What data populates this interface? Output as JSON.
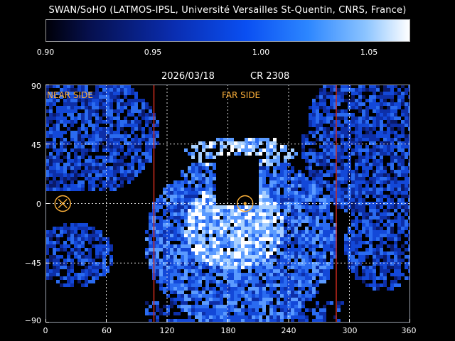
{
  "title": "SWAN/SoHO (LATMOS-IPSL, Université Versailles St-Quentin, CNRS, France)",
  "colorbar": {
    "ticks": [
      "0.90",
      "0.95",
      "1.00",
      "1.05"
    ],
    "range": [
      0.9,
      1.065
    ],
    "colors": [
      "#000008",
      "#06104e",
      "#0a2db0",
      "#0a4ff2",
      "#2c86ff",
      "#8cc4ff",
      "#ffffff"
    ]
  },
  "header": {
    "date": "2026/03/18",
    "carrington_rotation": "CR 2308"
  },
  "map": {
    "near_side_label": "NEAR SIDE",
    "far_side_label": "FAR SIDE",
    "y_ticks": [
      "90",
      "45",
      "0",
      "−45",
      "−90"
    ],
    "x_ticks": [
      "0",
      "60",
      "120",
      "180",
      "240",
      "300",
      "360"
    ],
    "xlim": [
      0,
      360
    ],
    "ylim": [
      -90,
      90
    ],
    "far_side_bounds_deg": [
      107,
      287
    ],
    "near_side_marker_deg": 17,
    "far_side_marker_deg": 197,
    "colors": {
      "boundary": "#cc2b1e",
      "marker": "#ffb23a",
      "grid": "#ffffff",
      "frame": "#9aa0ac"
    }
  }
}
